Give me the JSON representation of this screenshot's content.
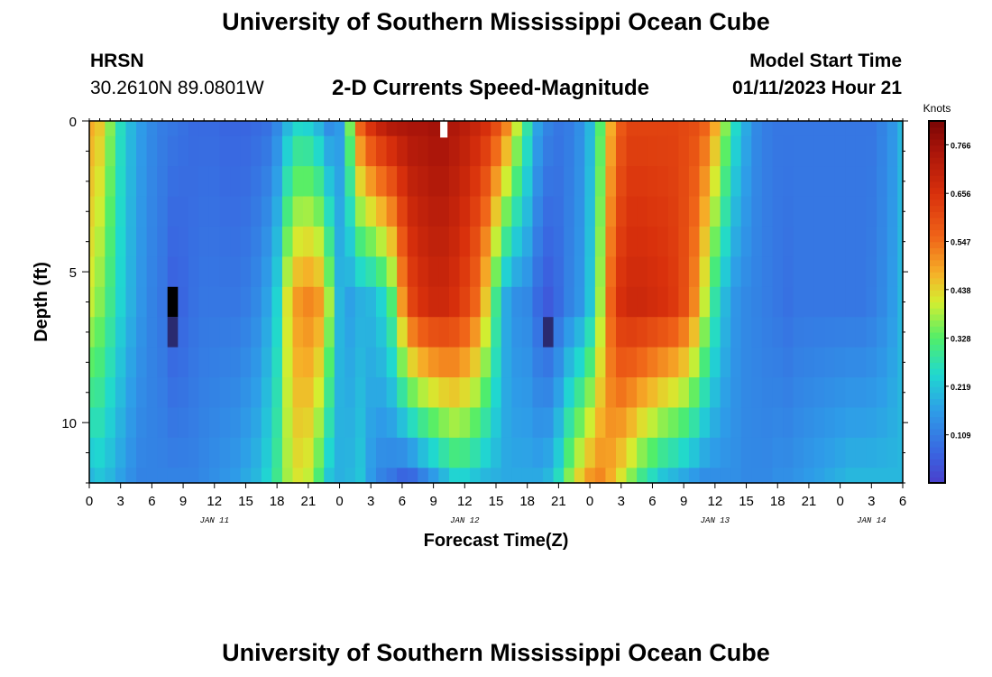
{
  "page": {
    "title": "University of Southern Mississippi Ocean Cube",
    "title_repeat": "University of Southern Mississippi Ocean Cube",
    "station": "HRSN",
    "coords": "30.2610N  89.0801W",
    "subtitle": "2-D Currents Speed-Magnitude",
    "model_start_label": "Model Start Time",
    "model_start_value": "01/11/2023 Hour 21"
  },
  "chart_data": {
    "type": "heatmap",
    "xlabel": "Forecast Time(Z)",
    "ylabel": "Depth (ft)",
    "colorbar_label": "Knots",
    "colorbar_ticks": [
      "0.109",
      "0.219",
      "0.328",
      "0.438",
      "0.547",
      "0.656",
      "0.766"
    ],
    "colorbar_range": [
      0.0,
      0.82
    ],
    "y_ticks": [
      "0",
      "5",
      "10"
    ],
    "y_range": [
      0,
      12
    ],
    "x_range_hours": [
      0,
      78
    ],
    "x_tick_hours": [
      0,
      3,
      6,
      9,
      12,
      15,
      18,
      21,
      24,
      27,
      30,
      33,
      36,
      39,
      42,
      45,
      48,
      51,
      54,
      57,
      60,
      63,
      66,
      69,
      72,
      75,
      78
    ],
    "x_tick_labels": [
      "0",
      "3",
      "6",
      "9",
      "12",
      "15",
      "18",
      "21",
      "0",
      "3",
      "6",
      "9",
      "12",
      "15",
      "18",
      "21",
      "0",
      "3",
      "6",
      "9",
      "12",
      "15",
      "18",
      "21",
      "0",
      "3",
      "6"
    ],
    "date_labels": [
      {
        "text": "JAN 11",
        "hour": 12
      },
      {
        "text": "JAN 12",
        "hour": 36
      },
      {
        "text": "JAN 13",
        "hour": 60
      },
      {
        "text": "JAN 14",
        "hour": 75
      }
    ],
    "depth_layers_ft": [
      0,
      1,
      2,
      3,
      4,
      5,
      6,
      7,
      8,
      9,
      10,
      11,
      12
    ],
    "time_steps_hours": [
      0,
      1,
      2,
      3,
      4,
      5,
      6,
      7,
      8,
      9,
      10,
      11,
      12,
      13,
      14,
      15,
      16,
      17,
      18,
      19,
      20,
      21,
      22,
      23,
      24,
      25,
      26,
      27,
      28,
      29,
      30,
      31,
      32,
      33,
      34,
      35,
      36,
      37,
      38,
      39,
      40,
      41,
      42,
      43,
      44,
      45,
      46,
      47,
      48,
      49,
      50,
      51,
      52,
      53,
      54,
      55,
      56,
      57,
      58,
      59,
      60,
      61,
      62,
      63,
      64,
      65,
      66,
      67,
      68,
      69,
      70,
      71,
      72,
      73,
      74,
      75,
      76,
      77,
      78
    ],
    "speed_profile_surface_knots": [
      0.48,
      0.45,
      0.36,
      0.26,
      0.2,
      0.16,
      0.13,
      0.11,
      0.1,
      0.09,
      0.08,
      0.08,
      0.08,
      0.07,
      0.07,
      0.07,
      0.08,
      0.09,
      0.13,
      0.2,
      0.25,
      0.24,
      0.2,
      0.14,
      0.16,
      0.35,
      0.56,
      0.65,
      0.7,
      0.73,
      0.74,
      0.75,
      0.75,
      0.76,
      0.76,
      0.74,
      0.72,
      0.69,
      0.66,
      0.6,
      0.52,
      0.4,
      0.28,
      0.17,
      0.12,
      0.1,
      0.11,
      0.14,
      0.2,
      0.33,
      0.48,
      0.58,
      0.62,
      0.62,
      0.62,
      0.62,
      0.62,
      0.61,
      0.6,
      0.56,
      0.48,
      0.36,
      0.25,
      0.18,
      0.13,
      0.11,
      0.1,
      0.1,
      0.1,
      0.1,
      0.1,
      0.1,
      0.1,
      0.1,
      0.1,
      0.1,
      0.12,
      0.15,
      0.2
    ],
    "speed_profile_mid_knots": [
      0.4,
      0.36,
      0.3,
      0.24,
      0.19,
      0.15,
      0.12,
      0.1,
      0.06,
      0.07,
      0.09,
      0.1,
      0.1,
      0.1,
      0.1,
      0.11,
      0.13,
      0.17,
      0.24,
      0.42,
      0.5,
      0.52,
      0.5,
      0.38,
      0.2,
      0.17,
      0.19,
      0.2,
      0.24,
      0.32,
      0.5,
      0.62,
      0.66,
      0.68,
      0.68,
      0.66,
      0.62,
      0.56,
      0.45,
      0.3,
      0.18,
      0.14,
      0.13,
      0.08,
      0.05,
      0.08,
      0.12,
      0.15,
      0.22,
      0.38,
      0.56,
      0.66,
      0.68,
      0.68,
      0.67,
      0.66,
      0.64,
      0.6,
      0.52,
      0.4,
      0.28,
      0.2,
      0.15,
      0.13,
      0.12,
      0.11,
      0.1,
      0.09,
      0.1,
      0.1,
      0.1,
      0.1,
      0.1,
      0.1,
      0.1,
      0.11,
      0.13,
      0.16,
      0.2
    ],
    "speed_profile_bottom_knots": [
      0.2,
      0.22,
      0.2,
      0.17,
      0.14,
      0.12,
      0.12,
      0.12,
      0.12,
      0.12,
      0.12,
      0.13,
      0.14,
      0.15,
      0.16,
      0.18,
      0.2,
      0.24,
      0.3,
      0.38,
      0.42,
      0.4,
      0.32,
      0.22,
      0.19,
      0.2,
      0.22,
      0.16,
      0.12,
      0.1,
      0.07,
      0.08,
      0.12,
      0.16,
      0.2,
      0.24,
      0.24,
      0.22,
      0.2,
      0.19,
      0.18,
      0.18,
      0.18,
      0.18,
      0.2,
      0.26,
      0.36,
      0.44,
      0.5,
      0.52,
      0.48,
      0.42,
      0.36,
      0.3,
      0.26,
      0.22,
      0.2,
      0.18,
      0.16,
      0.14,
      0.14,
      0.14,
      0.14,
      0.13,
      0.13,
      0.13,
      0.14,
      0.14,
      0.15,
      0.16,
      0.17,
      0.18,
      0.19,
      0.2,
      0.2,
      0.2,
      0.2,
      0.2,
      0.2
    ],
    "minimum_markers": [
      {
        "hour": 8,
        "depth_ft": 6,
        "knots": 0.0
      },
      {
        "hour": 8,
        "depth_ft": 7,
        "knots": 0.03
      },
      {
        "hour": 44,
        "depth_ft": 7,
        "knots": 0.04
      }
    ],
    "missing_cells": [
      {
        "hour": 34,
        "depth_ft": 0
      }
    ],
    "grid": false
  }
}
